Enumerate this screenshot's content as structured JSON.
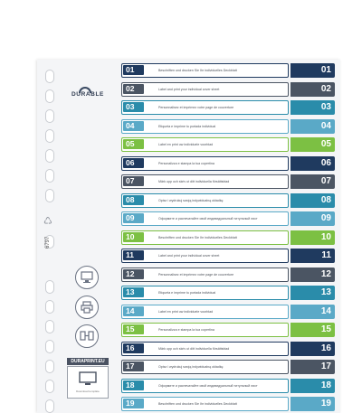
{
  "brand": "DURABLE",
  "product_code": "6797",
  "website_label": "DURAPRINT.EU",
  "website_sub": "Download template",
  "colors": {
    "navy": "#1f3a5f",
    "slate": "#4b5563",
    "teal": "#2a8caa",
    "lightblue": "#5aa9c7",
    "green": "#7cc043"
  },
  "rows": [
    {
      "num": "01",
      "text": "Beschriften und drucken Sie Ihr individuelles Deckblatt",
      "color": "#1f3a5f"
    },
    {
      "num": "02",
      "text": "Label and print your individual cover sheet",
      "color": "#4b5563"
    },
    {
      "num": "03",
      "text": "Personnalisez et imprimez votre page de couverture",
      "color": "#2a8caa"
    },
    {
      "num": "04",
      "text": "Etiqueta e imprime tu portada individual",
      "color": "#5aa9c7"
    },
    {
      "num": "05",
      "text": "Label en print uw individuele voorblad",
      "color": "#7cc043"
    },
    {
      "num": "06",
      "text": "Personalizza e stampa la tua copertina",
      "color": "#1f3a5f"
    },
    {
      "num": "07",
      "text": "Märk upp och skriv ut ditt individuella försättsblad",
      "color": "#4b5563"
    },
    {
      "num": "08",
      "text": "Opisz i wydrukuj swoją indywidualną okładkę",
      "color": "#2a8caa"
    },
    {
      "num": "09",
      "text": "Оформите и распечатайте свой индивидуальный титульный лист",
      "color": "#5aa9c7"
    },
    {
      "num": "10",
      "text": "Beschriften und drucken Sie Ihr individuelles Deckblatt",
      "color": "#7cc043"
    },
    {
      "num": "11",
      "text": "Label and print your individual cover sheet",
      "color": "#1f3a5f"
    },
    {
      "num": "12",
      "text": "Personnalisez et imprimez votre page de couverture",
      "color": "#4b5563"
    },
    {
      "num": "13",
      "text": "Etiqueta e imprime tu portada individual",
      "color": "#2a8caa"
    },
    {
      "num": "14",
      "text": "Label en print uw individuele voorblad",
      "color": "#5aa9c7"
    },
    {
      "num": "15",
      "text": "Personalizza e stampa la tua copertina",
      "color": "#7cc043"
    },
    {
      "num": "16",
      "text": "Märk upp och skriv ut ditt individuella försättsblad",
      "color": "#1f3a5f"
    },
    {
      "num": "17",
      "text": "Opisz i wydrukuj swoją indywidualną okładkę",
      "color": "#4b5563"
    },
    {
      "num": "18",
      "text": "Оформите и распечатайте свой индивидуальный титульный лист",
      "color": "#2a8caa"
    },
    {
      "num": "19",
      "text": "Beschriften und drucken Sie Ihr individuelles Deckblatt",
      "color": "#5aa9c7"
    }
  ]
}
